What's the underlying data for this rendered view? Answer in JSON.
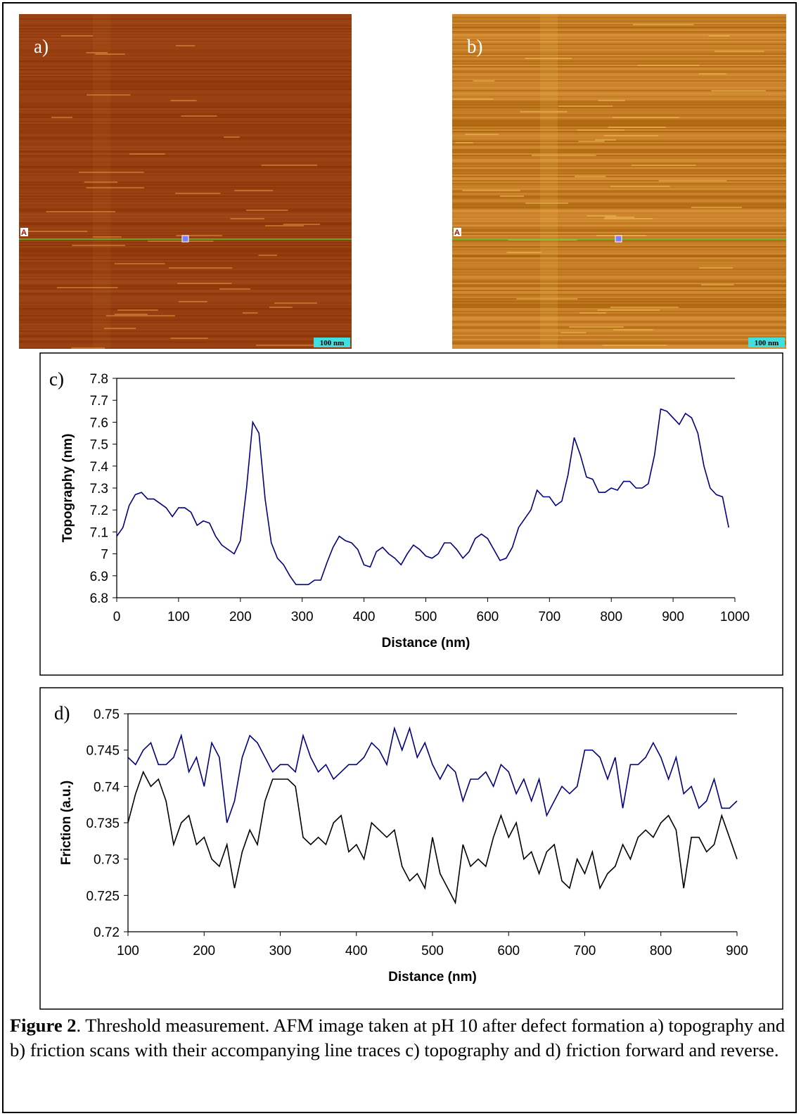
{
  "images": [
    {
      "label": "a)",
      "scale": "100 nm",
      "marker": "A"
    },
    {
      "label": "b)",
      "scale": "100 nm",
      "marker": "A"
    }
  ],
  "chart_data": [
    {
      "type": "line",
      "panel_label": "c)",
      "xlabel": "Distance (nm)",
      "ylabel": "Topography (nm)",
      "xlim": [
        0,
        1000
      ],
      "ylim": [
        6.8,
        7.8
      ],
      "xticks": [
        0,
        100,
        200,
        300,
        400,
        500,
        600,
        700,
        800,
        900,
        1000
      ],
      "yticks": [
        6.8,
        6.9,
        7,
        7.1,
        7.2,
        7.3,
        7.4,
        7.5,
        7.6,
        7.7,
        7.8
      ],
      "x": [
        0,
        10,
        20,
        30,
        40,
        50,
        60,
        70,
        80,
        90,
        100,
        110,
        120,
        130,
        140,
        150,
        160,
        170,
        180,
        190,
        200,
        210,
        220,
        230,
        240,
        250,
        260,
        270,
        280,
        290,
        300,
        310,
        320,
        330,
        340,
        350,
        360,
        370,
        380,
        390,
        400,
        410,
        420,
        430,
        440,
        450,
        460,
        470,
        480,
        490,
        500,
        510,
        520,
        530,
        540,
        550,
        560,
        570,
        580,
        590,
        600,
        610,
        620,
        630,
        640,
        650,
        660,
        670,
        680,
        690,
        700,
        710,
        720,
        730,
        740,
        750,
        760,
        770,
        780,
        790,
        800,
        810,
        820,
        830,
        840,
        850,
        860,
        870,
        880,
        890,
        900,
        910,
        920,
        930,
        940,
        950,
        960,
        970,
        980,
        990
      ],
      "series": [
        {
          "color": "#000080",
          "values": [
            7.08,
            7.12,
            7.22,
            7.27,
            7.28,
            7.25,
            7.25,
            7.23,
            7.21,
            7.17,
            7.21,
            7.21,
            7.19,
            7.13,
            7.15,
            7.14,
            7.08,
            7.04,
            7.02,
            7.0,
            7.06,
            7.3,
            7.6,
            7.55,
            7.25,
            7.05,
            6.98,
            6.95,
            6.9,
            6.86,
            6.86,
            6.86,
            6.88,
            6.88,
            6.96,
            7.03,
            7.08,
            7.06,
            7.05,
            7.02,
            6.95,
            6.94,
            7.01,
            7.03,
            7.0,
            6.98,
            6.95,
            7.0,
            7.04,
            7.02,
            6.99,
            6.98,
            7.0,
            7.05,
            7.05,
            7.02,
            6.98,
            7.01,
            7.07,
            7.09,
            7.07,
            7.02,
            6.97,
            6.98,
            7.03,
            7.12,
            7.16,
            7.2,
            7.29,
            7.26,
            7.26,
            7.22,
            7.24,
            7.36,
            7.53,
            7.45,
            7.35,
            7.34,
            7.28,
            7.28,
            7.3,
            7.29,
            7.33,
            7.33,
            7.3,
            7.3,
            7.32,
            7.45,
            7.66,
            7.65,
            7.62,
            7.59,
            7.64,
            7.62,
            7.55,
            7.4,
            7.3,
            7.27,
            7.26,
            7.12
          ]
        }
      ]
    },
    {
      "type": "line",
      "panel_label": "d)",
      "xlabel": "Distance (nm)",
      "ylabel": "Friction (a.u.)",
      "xlim": [
        100,
        900
      ],
      "ylim": [
        0.72,
        0.75
      ],
      "xticks": [
        100,
        200,
        300,
        400,
        500,
        600,
        700,
        800,
        900
      ],
      "yticks": [
        0.72,
        0.725,
        0.73,
        0.735,
        0.74,
        0.745,
        0.75
      ],
      "x": [
        100,
        110,
        120,
        130,
        140,
        150,
        160,
        170,
        180,
        190,
        200,
        210,
        220,
        230,
        240,
        250,
        260,
        270,
        280,
        290,
        300,
        310,
        320,
        330,
        340,
        350,
        360,
        370,
        380,
        390,
        400,
        410,
        420,
        430,
        440,
        450,
        460,
        470,
        480,
        490,
        500,
        510,
        520,
        530,
        540,
        550,
        560,
        570,
        580,
        590,
        600,
        610,
        620,
        630,
        640,
        650,
        660,
        670,
        680,
        690,
        700,
        710,
        720,
        730,
        740,
        750,
        760,
        770,
        780,
        790,
        800,
        810,
        820,
        830,
        840,
        850,
        860,
        870,
        880,
        890,
        900
      ],
      "series": [
        {
          "color": "#000080",
          "values": [
            0.744,
            0.743,
            0.745,
            0.746,
            0.743,
            0.743,
            0.744,
            0.747,
            0.742,
            0.744,
            0.74,
            0.746,
            0.744,
            0.735,
            0.738,
            0.744,
            0.747,
            0.746,
            0.744,
            0.742,
            0.743,
            0.743,
            0.742,
            0.747,
            0.744,
            0.742,
            0.743,
            0.741,
            0.742,
            0.743,
            0.743,
            0.744,
            0.746,
            0.745,
            0.743,
            0.748,
            0.745,
            0.748,
            0.744,
            0.746,
            0.743,
            0.741,
            0.743,
            0.742,
            0.738,
            0.741,
            0.741,
            0.742,
            0.74,
            0.743,
            0.742,
            0.739,
            0.741,
            0.738,
            0.741,
            0.736,
            0.738,
            0.74,
            0.739,
            0.74,
            0.745,
            0.745,
            0.744,
            0.741,
            0.744,
            0.737,
            0.743,
            0.743,
            0.744,
            0.746,
            0.744,
            0.741,
            0.744,
            0.739,
            0.74,
            0.737,
            0.738,
            0.741,
            0.737,
            0.737,
            0.738
          ]
        },
        {
          "color": "#000000",
          "values": [
            0.735,
            0.739,
            0.742,
            0.74,
            0.741,
            0.738,
            0.732,
            0.735,
            0.736,
            0.732,
            0.733,
            0.73,
            0.729,
            0.732,
            0.726,
            0.731,
            0.734,
            0.732,
            0.738,
            0.741,
            0.741,
            0.741,
            0.74,
            0.733,
            0.732,
            0.733,
            0.732,
            0.735,
            0.736,
            0.731,
            0.732,
            0.73,
            0.735,
            0.734,
            0.733,
            0.734,
            0.729,
            0.727,
            0.728,
            0.726,
            0.733,
            0.728,
            0.726,
            0.724,
            0.732,
            0.729,
            0.73,
            0.729,
            0.733,
            0.736,
            0.733,
            0.735,
            0.73,
            0.731,
            0.728,
            0.731,
            0.732,
            0.727,
            0.726,
            0.73,
            0.728,
            0.731,
            0.726,
            0.728,
            0.729,
            0.732,
            0.73,
            0.733,
            0.734,
            0.733,
            0.735,
            0.736,
            0.734,
            0.726,
            0.733,
            0.733,
            0.731,
            0.732,
            0.736,
            0.733,
            0.73
          ]
        }
      ]
    }
  ],
  "caption": {
    "label": "Figure 2",
    "text": ". Threshold measurement. AFM image taken at pH 10 after defect formation a) topography and b) friction scans with their accompanying line traces c) topography and d) friction forward and reverse."
  }
}
